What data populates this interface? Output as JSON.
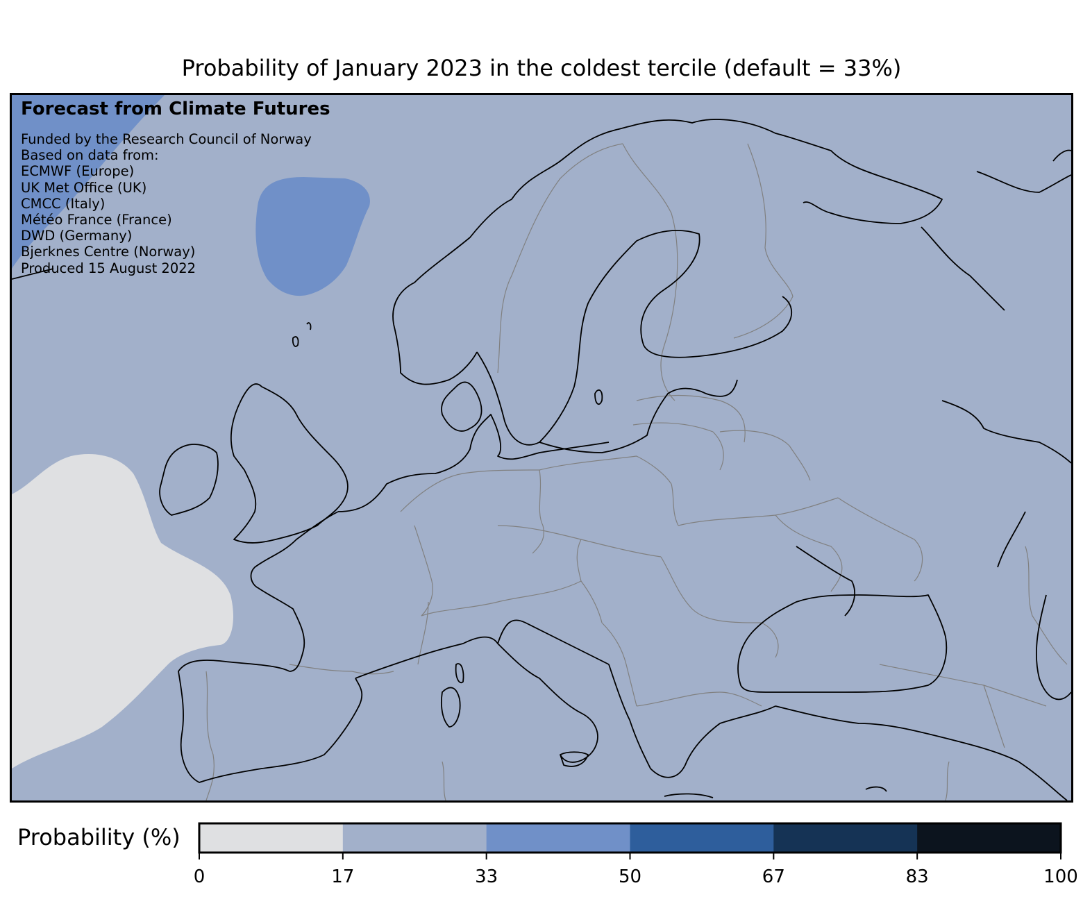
{
  "title": "Probability of January 2023 in the coldest tercile (default = 33%)",
  "info": {
    "heading": "Forecast from Climate Futures",
    "lines": [
      "Funded by the Research Council of Norway",
      "Based on data from:",
      "ECMWF (Europe)",
      "UK Met Office (UK)",
      "CMCC (Italy)",
      "Météo France (France)",
      "DWD (Germany)",
      "Bjerknes Centre (Norway)",
      "Produced 15 August 2022"
    ]
  },
  "map": {
    "region": "Europe",
    "background_category_color": "#a2b0ca",
    "regions": [
      {
        "name": "North Atlantic west of Iberia",
        "probability_range": "0-17",
        "color": "#dfe0e2"
      },
      {
        "name": "Norwegian Sea",
        "probability_range": "33-50",
        "color": "#7090c8"
      },
      {
        "name": "Northwest corner near Iceland",
        "probability_range": "33-50",
        "color": "#7090c8"
      },
      {
        "name": "Most of Europe",
        "probability_range": "17-33",
        "color": "#a2b0ca"
      }
    ],
    "coastline_color": "#000000",
    "border_color": "#808080"
  },
  "colorbar": {
    "label": "Probability (%)",
    "ticks": [
      "0",
      "17",
      "33",
      "50",
      "67",
      "83",
      "100"
    ],
    "bins": [
      {
        "range": "0-17",
        "color": "#dfe0e2"
      },
      {
        "range": "17-33",
        "color": "#a2b0ca"
      },
      {
        "range": "33-50",
        "color": "#7090c8"
      },
      {
        "range": "50-67",
        "color": "#2e5e9c"
      },
      {
        "range": "67-83",
        "color": "#153355"
      },
      {
        "range": "83-100",
        "color": "#0c141e"
      }
    ]
  }
}
